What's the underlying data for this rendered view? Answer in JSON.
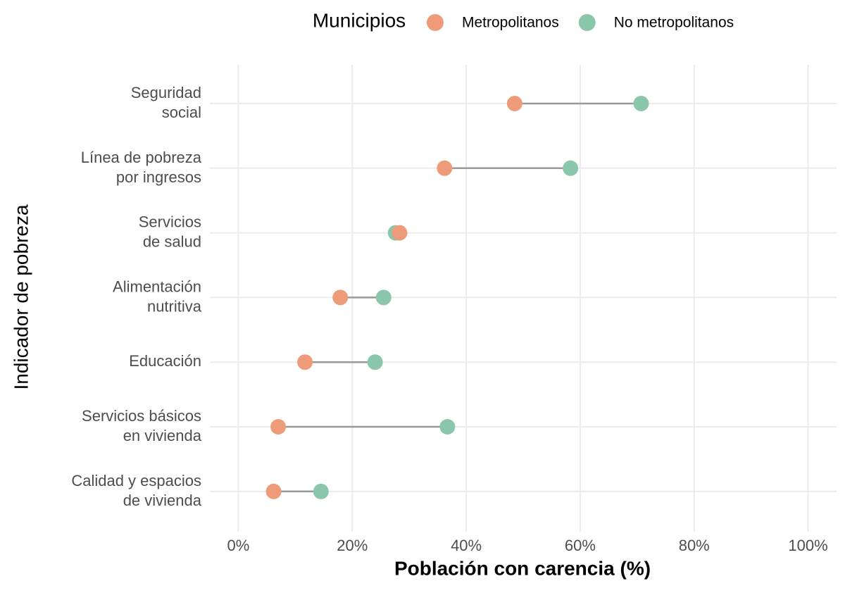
{
  "chart_data": {
    "type": "dumbbell",
    "legend_title": "Municipios",
    "xlabel": "Población con carencia (%)",
    "ylabel": "Indicador de pobreza",
    "categories": [
      "Seguridad\nsocial",
      "Línea de pobreza\npor ingresos",
      "Servicios\nde salud",
      "Alimentación\nnutritiva",
      "Educación",
      "Servicios básicos\nen vivienda",
      "Calidad y espacios\nde vivienda"
    ],
    "series": [
      {
        "name": "Metropolitanos",
        "color": "#ee9b79",
        "values": [
          48.5,
          36.2,
          28.3,
          17.9,
          11.7,
          7.0,
          6.2
        ]
      },
      {
        "name": "No metropolitanos",
        "color": "#89c6aa",
        "values": [
          70.7,
          58.3,
          27.6,
          25.5,
          24.0,
          36.7,
          14.5
        ]
      }
    ],
    "xlim": [
      -5,
      105
    ],
    "xticks": [
      {
        "value": 0,
        "label": "0%"
      },
      {
        "value": 20,
        "label": "20%"
      },
      {
        "value": 40,
        "label": "40%"
      },
      {
        "value": 60,
        "label": "60%"
      },
      {
        "value": 80,
        "label": "80%"
      },
      {
        "value": 100,
        "label": "100%"
      }
    ],
    "grid": true,
    "legend_position": "top"
  }
}
